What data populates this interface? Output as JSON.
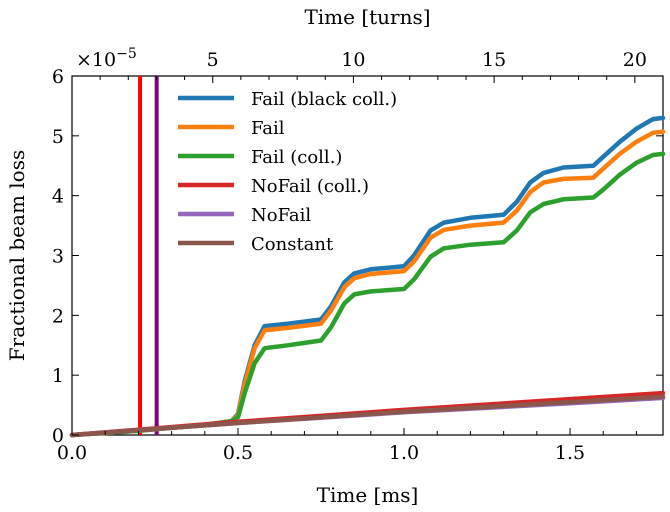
{
  "chart_data": {
    "type": "line",
    "title": "",
    "xlabel": "Time [ms]",
    "ylabel": "Fractional beam loss",
    "x2label": "Time [turns]",
    "y_scale_label": "×10",
    "y_scale_exp": "−5",
    "xlim": [
      0,
      1.78
    ],
    "ylim": [
      0,
      6
    ],
    "x2lim": [
      0,
      21
    ],
    "xticks": [
      0.0,
      0.5,
      1.0,
      1.5
    ],
    "xtick_labels": [
      "0.0",
      "0.5",
      "1.0",
      "1.5"
    ],
    "yticks": [
      0,
      1,
      2,
      3,
      4,
      5,
      6
    ],
    "ytick_labels": [
      "0",
      "1",
      "2",
      "3",
      "4",
      "5",
      "6"
    ],
    "x2ticks": [
      5,
      10,
      15,
      20
    ],
    "x2tick_labels": [
      "5",
      "10",
      "15",
      "20"
    ],
    "grid": false,
    "legend_position": "top-left",
    "vertical_lines": [
      {
        "x": 0.205,
        "color": "#ff0000"
      },
      {
        "x": 0.255,
        "color": "#800080"
      }
    ],
    "series": [
      {
        "name": "Fail (black coll.)",
        "color": "#1f77b4",
        "x": [
          0,
          0.2,
          0.4,
          0.48,
          0.5,
          0.52,
          0.55,
          0.58,
          0.65,
          0.75,
          0.78,
          0.82,
          0.85,
          0.9,
          1.0,
          1.03,
          1.08,
          1.12,
          1.2,
          1.3,
          1.34,
          1.38,
          1.42,
          1.48,
          1.57,
          1.6,
          1.65,
          1.7,
          1.75,
          1.78
        ],
        "values": [
          0,
          0.07,
          0.17,
          0.23,
          0.35,
          0.9,
          1.5,
          1.82,
          1.86,
          1.93,
          2.15,
          2.55,
          2.7,
          2.77,
          2.82,
          3.0,
          3.42,
          3.55,
          3.63,
          3.68,
          3.9,
          4.22,
          4.38,
          4.47,
          4.5,
          4.65,
          4.9,
          5.12,
          5.28,
          5.3
        ]
      },
      {
        "name": "Fail",
        "color": "#ff7f0e",
        "x": [
          0,
          0.2,
          0.4,
          0.48,
          0.5,
          0.52,
          0.55,
          0.58,
          0.65,
          0.75,
          0.78,
          0.82,
          0.85,
          0.9,
          1.0,
          1.03,
          1.08,
          1.12,
          1.2,
          1.3,
          1.34,
          1.38,
          1.42,
          1.48,
          1.57,
          1.6,
          1.65,
          1.7,
          1.75,
          1.78
        ],
        "values": [
          0,
          0.07,
          0.17,
          0.23,
          0.33,
          0.85,
          1.45,
          1.75,
          1.79,
          1.86,
          2.08,
          2.47,
          2.62,
          2.69,
          2.74,
          2.9,
          3.3,
          3.43,
          3.5,
          3.55,
          3.75,
          4.06,
          4.22,
          4.28,
          4.3,
          4.45,
          4.7,
          4.9,
          5.05,
          5.07
        ]
      },
      {
        "name": "Fail (coll.)",
        "color": "#2ca02c",
        "x": [
          0,
          0.2,
          0.4,
          0.48,
          0.5,
          0.52,
          0.55,
          0.58,
          0.65,
          0.75,
          0.78,
          0.82,
          0.85,
          0.9,
          1.0,
          1.03,
          1.08,
          1.12,
          1.2,
          1.3,
          1.34,
          1.38,
          1.42,
          1.48,
          1.57,
          1.6,
          1.65,
          1.7,
          1.75,
          1.78
        ],
        "values": [
          0,
          0.07,
          0.17,
          0.23,
          0.3,
          0.7,
          1.2,
          1.45,
          1.5,
          1.58,
          1.8,
          2.2,
          2.35,
          2.4,
          2.44,
          2.6,
          2.98,
          3.12,
          3.18,
          3.22,
          3.42,
          3.72,
          3.86,
          3.94,
          3.97,
          4.1,
          4.35,
          4.55,
          4.68,
          4.7
        ]
      },
      {
        "name": "NoFail (coll.)",
        "color": "#d62728",
        "x": [
          0,
          0.5,
          1.0,
          1.5,
          1.78
        ],
        "values": [
          0,
          0.22,
          0.42,
          0.6,
          0.7
        ]
      },
      {
        "name": "NoFail",
        "color": "#9467bd",
        "x": [
          0,
          0.5,
          1.0,
          1.5,
          1.78
        ],
        "values": [
          0,
          0.2,
          0.38,
          0.53,
          0.62
        ]
      },
      {
        "name": "Constant",
        "color": "#8c564b",
        "x": [
          0,
          0.5,
          1.0,
          1.5,
          1.78
        ],
        "values": [
          0,
          0.2,
          0.39,
          0.55,
          0.64
        ]
      }
    ]
  }
}
